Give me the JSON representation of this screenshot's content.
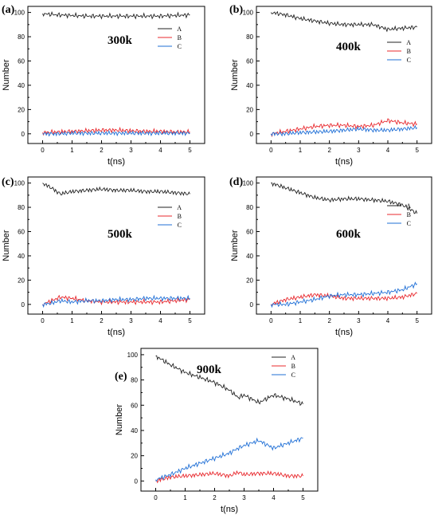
{
  "colors": {
    "A": "#222222",
    "B": "#e8282d",
    "C": "#1f6fd6"
  },
  "chart_data": [
    {
      "type": "line",
      "panel_label": "(a)",
      "temperature": "300k",
      "xlabel": "t(ns)",
      "ylabel": "Number",
      "xlim": [
        -0.5,
        5.5
      ],
      "ylim": [
        -8,
        105
      ],
      "xticks": [
        "0",
        "1",
        "2",
        "3",
        "4",
        "5"
      ],
      "yticks": [
        "0",
        "20",
        "40",
        "60",
        "80",
        "100"
      ],
      "legend": [
        "A",
        "B",
        "C"
      ],
      "series": [
        {
          "name": "A",
          "x": [
            0,
            0.5,
            1,
            1.5,
            2,
            2.5,
            3,
            3.5,
            4,
            4.5,
            5
          ],
          "values": [
            99,
            98,
            97.5,
            97,
            97,
            97,
            97,
            97,
            97,
            97.5,
            98
          ]
        },
        {
          "name": "B",
          "x": [
            0,
            0.5,
            1,
            1.5,
            2,
            2.5,
            3,
            3.5,
            4,
            4.5,
            5
          ],
          "values": [
            1,
            1.5,
            2,
            2.5,
            3,
            3,
            2.5,
            2,
            2,
            1.5,
            1.5
          ]
        },
        {
          "name": "C",
          "x": [
            0,
            0.5,
            1,
            1.5,
            2,
            2.5,
            3,
            3.5,
            4,
            4.5,
            5
          ],
          "values": [
            0,
            0,
            0.5,
            0.5,
            0.5,
            0.5,
            0.5,
            0.5,
            0.5,
            0.5,
            0.5
          ]
        }
      ]
    },
    {
      "type": "line",
      "panel_label": "(b)",
      "temperature": "400k",
      "xlabel": "t(ns)",
      "ylabel": "Number",
      "xlim": [
        -0.5,
        5.5
      ],
      "ylim": [
        -8,
        105
      ],
      "xticks": [
        "0",
        "1",
        "2",
        "3",
        "4",
        "5"
      ],
      "yticks": [
        "0",
        "20",
        "40",
        "60",
        "80",
        "100"
      ],
      "legend": [
        "A",
        "B",
        "C"
      ],
      "series": [
        {
          "name": "A",
          "x": [
            0,
            0.5,
            1,
            1.5,
            2,
            2.5,
            3,
            3.5,
            4,
            4.5,
            5
          ],
          "values": [
            100,
            98,
            95,
            93,
            91,
            90,
            90,
            90,
            86,
            87,
            88
          ]
        },
        {
          "name": "B",
          "x": [
            0,
            0.5,
            1,
            1.5,
            2,
            2.5,
            3,
            3.5,
            4,
            4.5,
            5
          ],
          "values": [
            0,
            2,
            4,
            6,
            7,
            7,
            6,
            7,
            11,
            9,
            8
          ]
        },
        {
          "name": "C",
          "x": [
            0,
            0.5,
            1,
            1.5,
            2,
            2.5,
            3,
            3.5,
            4,
            4.5,
            5
          ],
          "values": [
            0,
            0,
            1,
            1.5,
            2,
            3,
            4,
            3,
            3,
            4,
            5
          ]
        }
      ]
    },
    {
      "type": "line",
      "panel_label": "(c)",
      "temperature": "500k",
      "xlabel": "t(ns)",
      "ylabel": "Number",
      "xlim": [
        -0.5,
        5.5
      ],
      "ylim": [
        -8,
        105
      ],
      "xticks": [
        "0",
        "1",
        "2",
        "3",
        "4",
        "5"
      ],
      "yticks": [
        "0",
        "20",
        "40",
        "60",
        "80",
        "100"
      ],
      "legend": [
        "A",
        "B",
        "C"
      ],
      "series": [
        {
          "name": "A",
          "x": [
            0,
            0.3,
            0.6,
            1,
            1.5,
            2,
            2.5,
            3,
            3.5,
            4,
            4.5,
            5
          ],
          "values": [
            100,
            96,
            91,
            93,
            94,
            95,
            94,
            94,
            93,
            93,
            92,
            91
          ]
        },
        {
          "name": "B",
          "x": [
            0,
            0.3,
            0.6,
            1,
            1.5,
            2,
            2.5,
            3,
            3.5,
            4,
            4.5,
            5
          ],
          "values": [
            0,
            3,
            6,
            5,
            3,
            2,
            2,
            2,
            2,
            2,
            3,
            4
          ]
        },
        {
          "name": "C",
          "x": [
            0,
            0.3,
            0.6,
            1,
            1.5,
            2,
            2.5,
            3,
            3.5,
            4,
            4.5,
            5
          ],
          "values": [
            0,
            1,
            3,
            2,
            3,
            3,
            4,
            4,
            5,
            5,
            5,
            5
          ]
        }
      ]
    },
    {
      "type": "line",
      "panel_label": "(d)",
      "temperature": "600k",
      "xlabel": "t(ns)",
      "ylabel": "Number",
      "xlim": [
        -0.5,
        5.5
      ],
      "ylim": [
        -8,
        105
      ],
      "xticks": [
        "0",
        "1",
        "2",
        "3",
        "4",
        "5"
      ],
      "yticks": [
        "0",
        "20",
        "40",
        "60",
        "80",
        "100"
      ],
      "legend": [
        "A",
        "B",
        "C"
      ],
      "series": [
        {
          "name": "A",
          "x": [
            0,
            0.5,
            1,
            1.5,
            2,
            2.5,
            3,
            3.5,
            4,
            4.5,
            5
          ],
          "values": [
            100,
            96,
            92,
            88,
            86,
            87,
            87,
            86,
            85,
            82,
            75
          ]
        },
        {
          "name": "B",
          "x": [
            0,
            0.5,
            1,
            1.5,
            2,
            2.5,
            3,
            3.5,
            4,
            4.5,
            5
          ],
          "values": [
            0,
            4,
            6,
            8,
            7,
            5,
            5,
            5,
            5,
            6,
            9
          ]
        },
        {
          "name": "C",
          "x": [
            0,
            0.5,
            1,
            1.5,
            2,
            2.5,
            3,
            3.5,
            4,
            4.5,
            5
          ],
          "values": [
            0,
            0,
            2,
            4,
            7,
            8,
            8,
            9,
            10,
            12,
            17
          ]
        }
      ]
    },
    {
      "type": "line",
      "panel_label": "(e)",
      "temperature": "900k",
      "xlabel": "t(ns)",
      "ylabel": "Number",
      "xlim": [
        -0.5,
        5.5
      ],
      "ylim": [
        -8,
        105
      ],
      "xticks": [
        "0",
        "1",
        "2",
        "3",
        "4",
        "5"
      ],
      "yticks": [
        "0",
        "20",
        "40",
        "60",
        "80",
        "100"
      ],
      "legend": [
        "A",
        "B",
        "C"
      ],
      "series": [
        {
          "name": "A",
          "x": [
            0,
            0.5,
            1,
            1.5,
            2,
            2.5,
            2.8,
            3,
            3.5,
            4,
            4.5,
            5
          ],
          "values": [
            99,
            92,
            86,
            82,
            78,
            72,
            66,
            68,
            62,
            68,
            65,
            61
          ]
        },
        {
          "name": "B",
          "x": [
            0,
            0.5,
            1,
            1.5,
            2,
            2.5,
            2.8,
            3,
            3.5,
            4,
            4.5,
            5
          ],
          "values": [
            0,
            3,
            4,
            5,
            6,
            4,
            7,
            5,
            6,
            6,
            4,
            4
          ]
        },
        {
          "name": "C",
          "x": [
            0,
            0.5,
            1,
            1.5,
            2,
            2.5,
            2.8,
            3,
            3.5,
            4,
            4.5,
            5
          ],
          "values": [
            1,
            5,
            10,
            14,
            18,
            22,
            26,
            28,
            32,
            26,
            30,
            34
          ]
        }
      ]
    }
  ]
}
